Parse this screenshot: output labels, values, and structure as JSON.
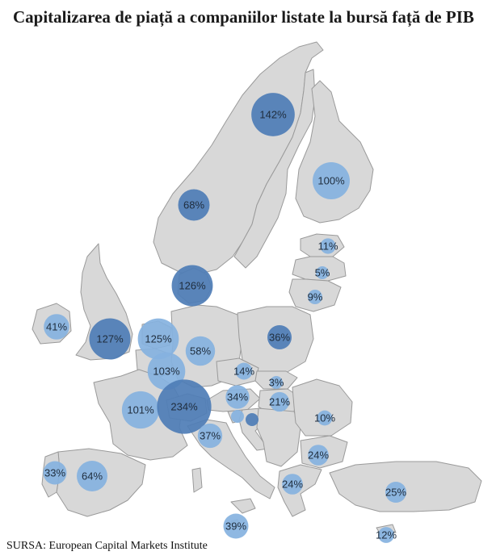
{
  "title": "Capitalizarea de piață a companiilor listate la bursă față de PIB",
  "source": "SURSA: European Capital Markets Institute",
  "colors": {
    "land": "#d8d8d8",
    "border": "#9a9a9a",
    "bubble_dark": "#4e7db6",
    "bubble_light": "#85b2e0"
  },
  "markers": [
    {
      "country": "Sweden",
      "label": "142%",
      "value": 142,
      "shade": "dark"
    },
    {
      "country": "Finland",
      "label": "100%",
      "value": 100,
      "shade": "light"
    },
    {
      "country": "Norway",
      "label": "68%",
      "value": 68,
      "shade": "dark"
    },
    {
      "country": "Estonia",
      "label": "11%",
      "value": 11,
      "shade": "light"
    },
    {
      "country": "Latvia",
      "label": "5%",
      "value": 5,
      "shade": "light"
    },
    {
      "country": "Lithuania",
      "label": "9%",
      "value": 9,
      "shade": "light"
    },
    {
      "country": "Denmark",
      "label": "126%",
      "value": 126,
      "shade": "dark"
    },
    {
      "country": "Ireland",
      "label": "41%",
      "value": 41,
      "shade": "light"
    },
    {
      "country": "United Kingdom",
      "label": "127%",
      "value": 127,
      "shade": "dark"
    },
    {
      "country": "Netherlands",
      "label": "125%",
      "value": 125,
      "shade": "light"
    },
    {
      "country": "Belgium",
      "label": "103%",
      "value": 103,
      "shade": "light"
    },
    {
      "country": "Germany",
      "label": "58%",
      "value": 58,
      "shade": "light"
    },
    {
      "country": "Poland",
      "label": "36%",
      "value": 36,
      "shade": "dark"
    },
    {
      "country": "Czech Republic",
      "label": "14%",
      "value": 14,
      "shade": "light"
    },
    {
      "country": "Slovakia",
      "label": "3%",
      "value": 3,
      "shade": "light"
    },
    {
      "country": "France",
      "label": "101%",
      "value": 101,
      "shade": "light"
    },
    {
      "country": "Switzerland",
      "label": "234%",
      "value": 234,
      "shade": "dark"
    },
    {
      "country": "Austria",
      "label": "34%",
      "value": 34,
      "shade": "light"
    },
    {
      "country": "Hungary",
      "label": "21%",
      "value": 21,
      "shade": "light"
    },
    {
      "country": "Romania",
      "label": "10%",
      "value": 10,
      "shade": "light"
    },
    {
      "country": "Italy",
      "label": "37%",
      "value": 37,
      "shade": "light"
    },
    {
      "country": "Bulgaria",
      "label": "24%",
      "value": 24,
      "shade": "light"
    },
    {
      "country": "Greece",
      "label": "24%",
      "value": 24,
      "shade": "light"
    },
    {
      "country": "Portugal",
      "label": "33%",
      "value": 33,
      "shade": "light"
    },
    {
      "country": "Spain",
      "label": "64%",
      "value": 64,
      "shade": "light"
    },
    {
      "country": "Turkey",
      "label": "25%",
      "value": 25,
      "shade": "light"
    },
    {
      "country": "Malta",
      "label": "39%",
      "value": 39,
      "shade": "light"
    },
    {
      "country": "Cyprus",
      "label": "12%",
      "value": 12,
      "shade": "light"
    },
    {
      "country": "Slovenia",
      "label": "",
      "value": null,
      "shade": "light"
    },
    {
      "country": "Croatia",
      "label": "",
      "value": null,
      "shade": "dark"
    }
  ]
}
